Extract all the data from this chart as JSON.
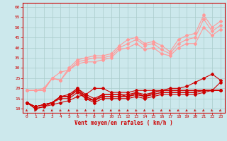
{
  "background_color": "#cce8ec",
  "grid_color": "#aacccc",
  "xlabel": "Vent moyen/en rafales ( km/h )",
  "xlabel_color": "#cc0000",
  "tick_color": "#cc0000",
  "x_ticks": [
    0,
    1,
    2,
    3,
    4,
    5,
    6,
    7,
    8,
    9,
    10,
    11,
    12,
    13,
    14,
    15,
    16,
    17,
    18,
    19,
    20,
    21,
    22,
    23
  ],
  "ylim": [
    8,
    62
  ],
  "yticks": [
    10,
    15,
    20,
    25,
    30,
    35,
    40,
    45,
    50,
    55,
    60
  ],
  "lines_light": [
    [
      19,
      19,
      19,
      25,
      24,
      30,
      34,
      35,
      36,
      36,
      37,
      41,
      44,
      45,
      42,
      43,
      41,
      38,
      44,
      46,
      47,
      56,
      50,
      53
    ],
    [
      19,
      19,
      19,
      25,
      24,
      29,
      33,
      34,
      35,
      35,
      36,
      40,
      42,
      44,
      41,
      42,
      39,
      37,
      42,
      44,
      45,
      54,
      48,
      51
    ],
    [
      19,
      19,
      20,
      25,
      28,
      29,
      32,
      33,
      33,
      34,
      35,
      39,
      40,
      42,
      39,
      40,
      37,
      36,
      40,
      42,
      42,
      50,
      46,
      49
    ]
  ],
  "lines_dark": [
    [
      13,
      10,
      11,
      12,
      13,
      14,
      16,
      17,
      20,
      20,
      18,
      18,
      18,
      19,
      19,
      19,
      19,
      20,
      20,
      21,
      23,
      25,
      27,
      24
    ],
    [
      13,
      11,
      12,
      13,
      16,
      17,
      20,
      17,
      15,
      17,
      17,
      17,
      17,
      18,
      17,
      18,
      19,
      19,
      19,
      19,
      19,
      19,
      19,
      19
    ],
    [
      13,
      11,
      12,
      13,
      16,
      16,
      20,
      16,
      14,
      17,
      17,
      17,
      16,
      18,
      16,
      18,
      19,
      19,
      19,
      19,
      19,
      19,
      19,
      19
    ],
    [
      13,
      11,
      12,
      13,
      16,
      16,
      19,
      16,
      14,
      16,
      16,
      16,
      16,
      17,
      16,
      17,
      18,
      18,
      18,
      18,
      18,
      19,
      19,
      19
    ],
    [
      13,
      11,
      12,
      13,
      16,
      16,
      19,
      15,
      14,
      16,
      16,
      16,
      16,
      17,
      16,
      17,
      18,
      18,
      18,
      18,
      18,
      19,
      19,
      19
    ],
    [
      13,
      10,
      11,
      13,
      15,
      15,
      18,
      15,
      13,
      15,
      15,
      15,
      15,
      16,
      15,
      16,
      17,
      17,
      17,
      17,
      17,
      18,
      19,
      23
    ]
  ],
  "light_line_color": "#ff9999",
  "dark_line_color": "#cc0000",
  "arrow_color": "#cc0000",
  "marker_size": 2.0,
  "line_width": 0.8
}
